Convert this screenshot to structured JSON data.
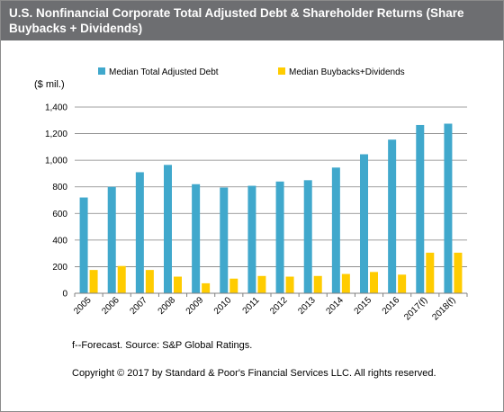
{
  "header": {
    "title": "U.S. Nonfinancial Corporate Total Adjusted  Debt &  Shareholder Returns (Share Buybacks  + Dividends)"
  },
  "chart_data": {
    "type": "bar",
    "ylabel": "($ mil.)",
    "ylim": [
      0,
      1400
    ],
    "yticks": [
      0,
      200,
      400,
      600,
      800,
      1000,
      1200,
      1400
    ],
    "ytick_labels": [
      "0",
      "200",
      "400",
      "600",
      "800",
      "1,000",
      "1,200",
      "1,400"
    ],
    "grid": true,
    "legend_position": "top",
    "categories": [
      "2005",
      "2006",
      "2007",
      "2008",
      "2009",
      "2010",
      "2011",
      "2012",
      "2013",
      "2014",
      "2015",
      "2016",
      "2017(f)",
      "2018(f)"
    ],
    "series": [
      {
        "name": "Median Total Adjusted Debt",
        "color": "#40a8cc",
        "values": [
          720,
          800,
          910,
          965,
          820,
          795,
          808,
          840,
          850,
          945,
          1045,
          1155,
          1265,
          1275
        ]
      },
      {
        "name": "Median Buybacks+Dividends",
        "color": "#ffcc00",
        "values": [
          175,
          205,
          175,
          125,
          75,
          110,
          130,
          125,
          130,
          145,
          160,
          140,
          305,
          305
        ]
      }
    ]
  },
  "footer": {
    "note": "f--Forecast. Source: S&P Global Ratings.",
    "copyright": "Copyright © 2017 by Standard & Poor's Financial Services LLC. All rights reserved."
  }
}
